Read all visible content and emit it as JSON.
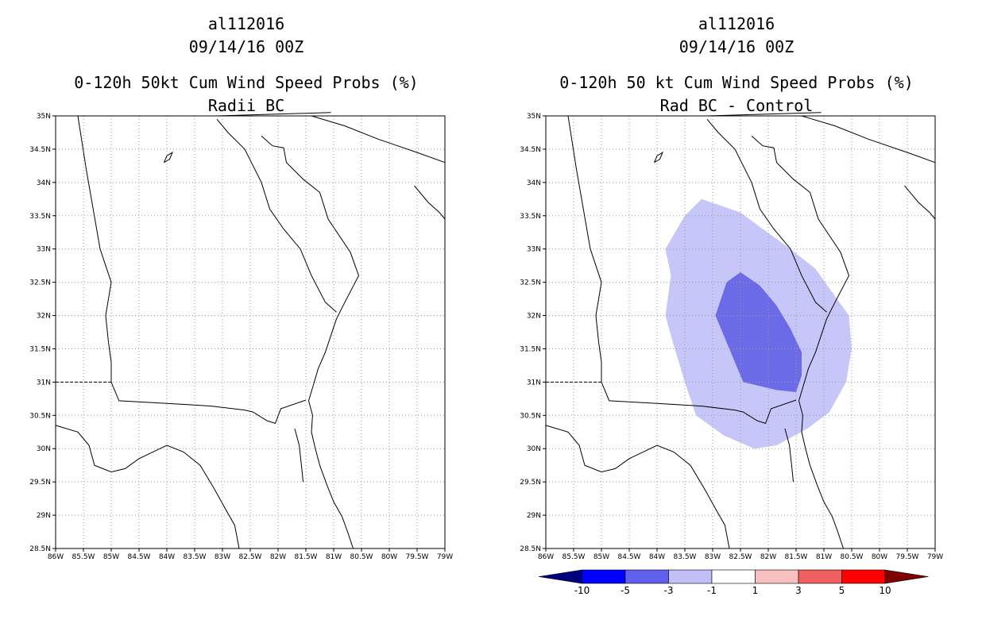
{
  "left_panel": {
    "title_lines": [
      "al112016",
      "09/14/16 00Z",
      "0-120h 50kt Cum Wind Speed Probs (%)",
      "Radii BC"
    ]
  },
  "right_panel": {
    "title_lines": [
      "al112016",
      "09/14/16 00Z",
      "0-120h 50 kt Cum Wind Speed Probs (%)",
      "Rad BC - Control"
    ]
  },
  "lat_labels": [
    "35N",
    "34.5N",
    "34N",
    "33.5N",
    "33N",
    "32.5N",
    "32N",
    "31.5N",
    "31N",
    "30.5N",
    "30N",
    "29.5N",
    "29N",
    "28.5N"
  ],
  "lon_labels": [
    "86W",
    "85.5W",
    "85W",
    "84.5W",
    "84W",
    "83.5W",
    "83W",
    "82.5W",
    "82W",
    "81.5W",
    "81W",
    "80.5W",
    "80W",
    "79.5W",
    "79W"
  ],
  "colorbar": {
    "labels": [
      "-10",
      "-5",
      "-3",
      "-1",
      "1",
      "3",
      "5",
      "10"
    ],
    "colors": [
      "#00007f",
      "#0000ff",
      "#6060ee",
      "#c0c0f8",
      "#ffffff",
      "#f8c0c0",
      "#f06060",
      "#ff0000",
      "#7f0000"
    ]
  },
  "contour_colors": {
    "outer": "#c6c6f8",
    "inner": "#6b6be8"
  }
}
